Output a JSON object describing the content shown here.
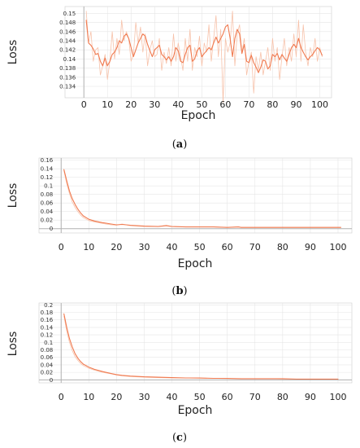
{
  "chart_data": [
    {
      "id": "a",
      "type": "line",
      "caption_letter": "a",
      "xlabel": "Epoch",
      "ylabel": "Loss",
      "xlim": [
        -8,
        105
      ],
      "ylim": [
        0.1315,
        0.1515
      ],
      "xticks": [
        0,
        10,
        20,
        30,
        40,
        50,
        60,
        70,
        80,
        90,
        100
      ],
      "yticks": [
        0.134,
        0.136,
        0.138,
        0.14,
        0.142,
        0.144,
        0.146,
        0.148,
        0.15
      ],
      "ytick_labels": [
        "0.134",
        "0.136",
        "0.138",
        "0.14",
        "0.142",
        "0.144",
        "0.146",
        "0.148",
        "0.15"
      ],
      "grid": true,
      "colors": {
        "smoothed": "#f07a50",
        "raw": "#f7c2aa",
        "axis": "#b0b0b0",
        "grid": "#e6e6e6"
      },
      "series": [
        {
          "style": "raw",
          "x": [
            1,
            2,
            3,
            4,
            5,
            6,
            7,
            8,
            9,
            10,
            11,
            12,
            13,
            14,
            15,
            16,
            17,
            18,
            19,
            20,
            21,
            22,
            23,
            24,
            25,
            26,
            27,
            28,
            29,
            30,
            31,
            32,
            33,
            34,
            35,
            36,
            37,
            38,
            39,
            40,
            41,
            42,
            43,
            44,
            45,
            46,
            47,
            48,
            49,
            50,
            51,
            52,
            53,
            54,
            55,
            56,
            57,
            58,
            59,
            60,
            61,
            62,
            63,
            64,
            65,
            66,
            67,
            68,
            69,
            70,
            71,
            72,
            73,
            74,
            75,
            76,
            77,
            78,
            79,
            80,
            81,
            82,
            83,
            84,
            85,
            86,
            87,
            88,
            89,
            90,
            91,
            92,
            93,
            94,
            95,
            96,
            97,
            98,
            99,
            100,
            101
          ],
          "values": [
            0.1505,
            0.1435,
            0.146,
            0.1395,
            0.142,
            0.1425,
            0.1365,
            0.1385,
            0.141,
            0.1355,
            0.1395,
            0.146,
            0.14,
            0.1445,
            0.141,
            0.1485,
            0.144,
            0.146,
            0.1445,
            0.1395,
            0.141,
            0.148,
            0.1435,
            0.147,
            0.1415,
            0.1455,
            0.1385,
            0.142,
            0.144,
            0.1405,
            0.141,
            0.1445,
            0.1375,
            0.1415,
            0.139,
            0.1425,
            0.1385,
            0.1455,
            0.1395,
            0.1435,
            0.1405,
            0.1375,
            0.1445,
            0.1395,
            0.1465,
            0.1375,
            0.1425,
            0.1405,
            0.145,
            0.1385,
            0.1435,
            0.1415,
            0.1475,
            0.1395,
            0.1445,
            0.1495,
            0.1405,
            0.1465,
            0.1305,
            0.1445,
            0.1415,
            0.1435,
            0.1505,
            0.1385,
            0.1455,
            0.1475,
            0.1415,
            0.1445,
            0.1365,
            0.1395,
            0.1415,
            0.1325,
            0.1405,
            0.1375,
            0.1415,
            0.1365,
            0.1395,
            0.1425,
            0.1375,
            0.1445,
            0.1395,
            0.1425,
            0.1355,
            0.1405,
            0.1445,
            0.1385,
            0.1425,
            0.1395,
            0.1455,
            0.1405,
            0.1485,
            0.1395,
            0.1475,
            0.1415,
            0.1385,
            0.1425,
            0.1405,
            0.1445,
            0.1395,
            0.1425,
            0.1405
          ]
        },
        {
          "style": "smoothed",
          "x": [
            1,
            2,
            3,
            4,
            5,
            6,
            7,
            8,
            9,
            10,
            11,
            12,
            13,
            14,
            15,
            16,
            17,
            18,
            19,
            20,
            21,
            22,
            23,
            24,
            25,
            26,
            27,
            28,
            29,
            30,
            31,
            32,
            33,
            34,
            35,
            36,
            37,
            38,
            39,
            40,
            41,
            42,
            43,
            44,
            45,
            46,
            47,
            48,
            49,
            50,
            51,
            52,
            53,
            54,
            55,
            56,
            57,
            58,
            59,
            60,
            61,
            62,
            63,
            64,
            65,
            66,
            67,
            68,
            69,
            70,
            71,
            72,
            73,
            74,
            75,
            76,
            77,
            78,
            79,
            80,
            81,
            82,
            83,
            84,
            85,
            86,
            87,
            88,
            89,
            90,
            91,
            92,
            93,
            94,
            95,
            96,
            97,
            98,
            99,
            100,
            101
          ],
          "values": [
            0.1485,
            0.1435,
            0.143,
            0.1422,
            0.141,
            0.1412,
            0.1395,
            0.1385,
            0.1402,
            0.1385,
            0.1395,
            0.141,
            0.1415,
            0.1425,
            0.144,
            0.1435,
            0.145,
            0.1455,
            0.1445,
            0.1425,
            0.1405,
            0.142,
            0.1435,
            0.1445,
            0.1455,
            0.145,
            0.1432,
            0.1418,
            0.1405,
            0.142,
            0.1425,
            0.143,
            0.141,
            0.1405,
            0.1398,
            0.1405,
            0.1395,
            0.1405,
            0.1425,
            0.1418,
            0.1395,
            0.1392,
            0.141,
            0.1425,
            0.143,
            0.1395,
            0.14,
            0.1418,
            0.1425,
            0.1405,
            0.1412,
            0.1418,
            0.1425,
            0.142,
            0.1435,
            0.1448,
            0.1435,
            0.1445,
            0.1455,
            0.147,
            0.1475,
            0.1445,
            0.1405,
            0.1445,
            0.1465,
            0.1455,
            0.1412,
            0.1432,
            0.1395,
            0.1392,
            0.1408,
            0.1392,
            0.1382,
            0.137,
            0.1382,
            0.1398,
            0.1395,
            0.1378,
            0.1385,
            0.141,
            0.1405,
            0.1412,
            0.1398,
            0.141,
            0.1402,
            0.1395,
            0.141,
            0.1425,
            0.1432,
            0.1425,
            0.1445,
            0.1425,
            0.1415,
            0.1405,
            0.1398,
            0.1405,
            0.141,
            0.1418,
            0.1425,
            0.142,
            0.1408
          ]
        }
      ]
    },
    {
      "id": "b",
      "type": "line",
      "caption_letter": "b",
      "xlabel": "Epoch",
      "ylabel": "Loss",
      "xlim": [
        -8,
        105
      ],
      "ylim": [
        -0.01,
        0.165
      ],
      "xticks": [
        0,
        10,
        20,
        30,
        40,
        50,
        60,
        70,
        80,
        90,
        100
      ],
      "yticks": [
        0,
        0.02,
        0.04,
        0.06,
        0.08,
        0.1,
        0.12,
        0.14,
        0.16
      ],
      "ytick_labels": [
        "0",
        "0.02",
        "0.04",
        "0.06",
        "0.08",
        "0.1",
        "0.12",
        "0.14",
        "0.16"
      ],
      "grid": true,
      "colors": {
        "smoothed": "#f07a50",
        "raw": "#f7c2aa",
        "axis": "#b0b0b0",
        "grid": "#e6e6e6"
      },
      "series": [
        {
          "style": "raw",
          "x": [
            1,
            2,
            3,
            4,
            5,
            6,
            7,
            8,
            10,
            12,
            15,
            18,
            20,
            22,
            25,
            30,
            35,
            38,
            40,
            45,
            50,
            55,
            60,
            64,
            65,
            70,
            75,
            80,
            85,
            90,
            95,
            100,
            101
          ],
          "values": [
            0.135,
            0.105,
            0.082,
            0.062,
            0.05,
            0.04,
            0.032,
            0.026,
            0.019,
            0.016,
            0.012,
            0.009,
            0.008,
            0.011,
            0.007,
            0.005,
            0.005,
            0.008,
            0.005,
            0.004,
            0.004,
            0.004,
            0.003,
            0.004,
            0.003,
            0.003,
            0.003,
            0.003,
            0.003,
            0.003,
            0.003,
            0.003,
            0.003
          ]
        },
        {
          "style": "smoothed",
          "x": [
            1,
            2,
            3,
            4,
            5,
            6,
            7,
            8,
            10,
            12,
            15,
            18,
            20,
            22,
            25,
            30,
            35,
            38,
            40,
            45,
            50,
            55,
            60,
            64,
            65,
            70,
            75,
            80,
            85,
            90,
            95,
            100,
            101
          ],
          "values": [
            0.138,
            0.112,
            0.088,
            0.07,
            0.057,
            0.046,
            0.037,
            0.03,
            0.022,
            0.018,
            0.014,
            0.011,
            0.009,
            0.01,
            0.008,
            0.006,
            0.005,
            0.007,
            0.005,
            0.004,
            0.004,
            0.004,
            0.003,
            0.004,
            0.003,
            0.003,
            0.003,
            0.003,
            0.003,
            0.003,
            0.003,
            0.003,
            0.003
          ]
        }
      ]
    },
    {
      "id": "c",
      "type": "line",
      "caption_letter": "c",
      "xlabel": "Epoch",
      "ylabel": "Loss",
      "xlim": [
        -8,
        105
      ],
      "ylim": [
        -0.008,
        0.205
      ],
      "xticks": [
        0,
        10,
        20,
        30,
        40,
        50,
        60,
        70,
        80,
        90,
        100
      ],
      "yticks": [
        0,
        0.02,
        0.04,
        0.06,
        0.08,
        0.1,
        0.12,
        0.14,
        0.16,
        0.18,
        0.2
      ],
      "ytick_labels": [
        "0",
        "0.02",
        "0.04",
        "0.06",
        "0.08",
        "0.1",
        "0.12",
        "0.14",
        "0.16",
        "0.18",
        "0.2"
      ],
      "grid": true,
      "colors": {
        "smoothed": "#f07a50",
        "raw": "#f7c2aa",
        "axis": "#b0b0b0",
        "grid": "#e6e6e6"
      },
      "series": [
        {
          "style": "raw",
          "x": [
            1,
            2,
            3,
            4,
            5,
            6,
            7,
            8,
            10,
            12,
            15,
            18,
            20,
            22,
            25,
            30,
            35,
            40,
            45,
            50,
            55,
            60,
            65,
            70,
            75,
            80,
            85,
            90,
            95,
            100
          ],
          "values": [
            0.17,
            0.13,
            0.1,
            0.078,
            0.062,
            0.052,
            0.044,
            0.038,
            0.031,
            0.026,
            0.02,
            0.016,
            0.013,
            0.011,
            0.009,
            0.007,
            0.006,
            0.005,
            0.005,
            0.004,
            0.004,
            0.003,
            0.003,
            0.003,
            0.003,
            0.002,
            0.002,
            0.002,
            0.002,
            0.002
          ]
        },
        {
          "style": "smoothed",
          "x": [
            1,
            2,
            3,
            4,
            5,
            6,
            7,
            8,
            10,
            12,
            15,
            18,
            20,
            22,
            25,
            30,
            35,
            40,
            45,
            50,
            55,
            60,
            65,
            70,
            75,
            80,
            85,
            90,
            95,
            100
          ],
          "values": [
            0.176,
            0.14,
            0.11,
            0.088,
            0.07,
            0.058,
            0.049,
            0.042,
            0.034,
            0.028,
            0.022,
            0.017,
            0.014,
            0.012,
            0.01,
            0.008,
            0.007,
            0.006,
            0.005,
            0.005,
            0.004,
            0.004,
            0.003,
            0.003,
            0.003,
            0.003,
            0.002,
            0.002,
            0.002,
            0.002
          ]
        }
      ]
    }
  ]
}
